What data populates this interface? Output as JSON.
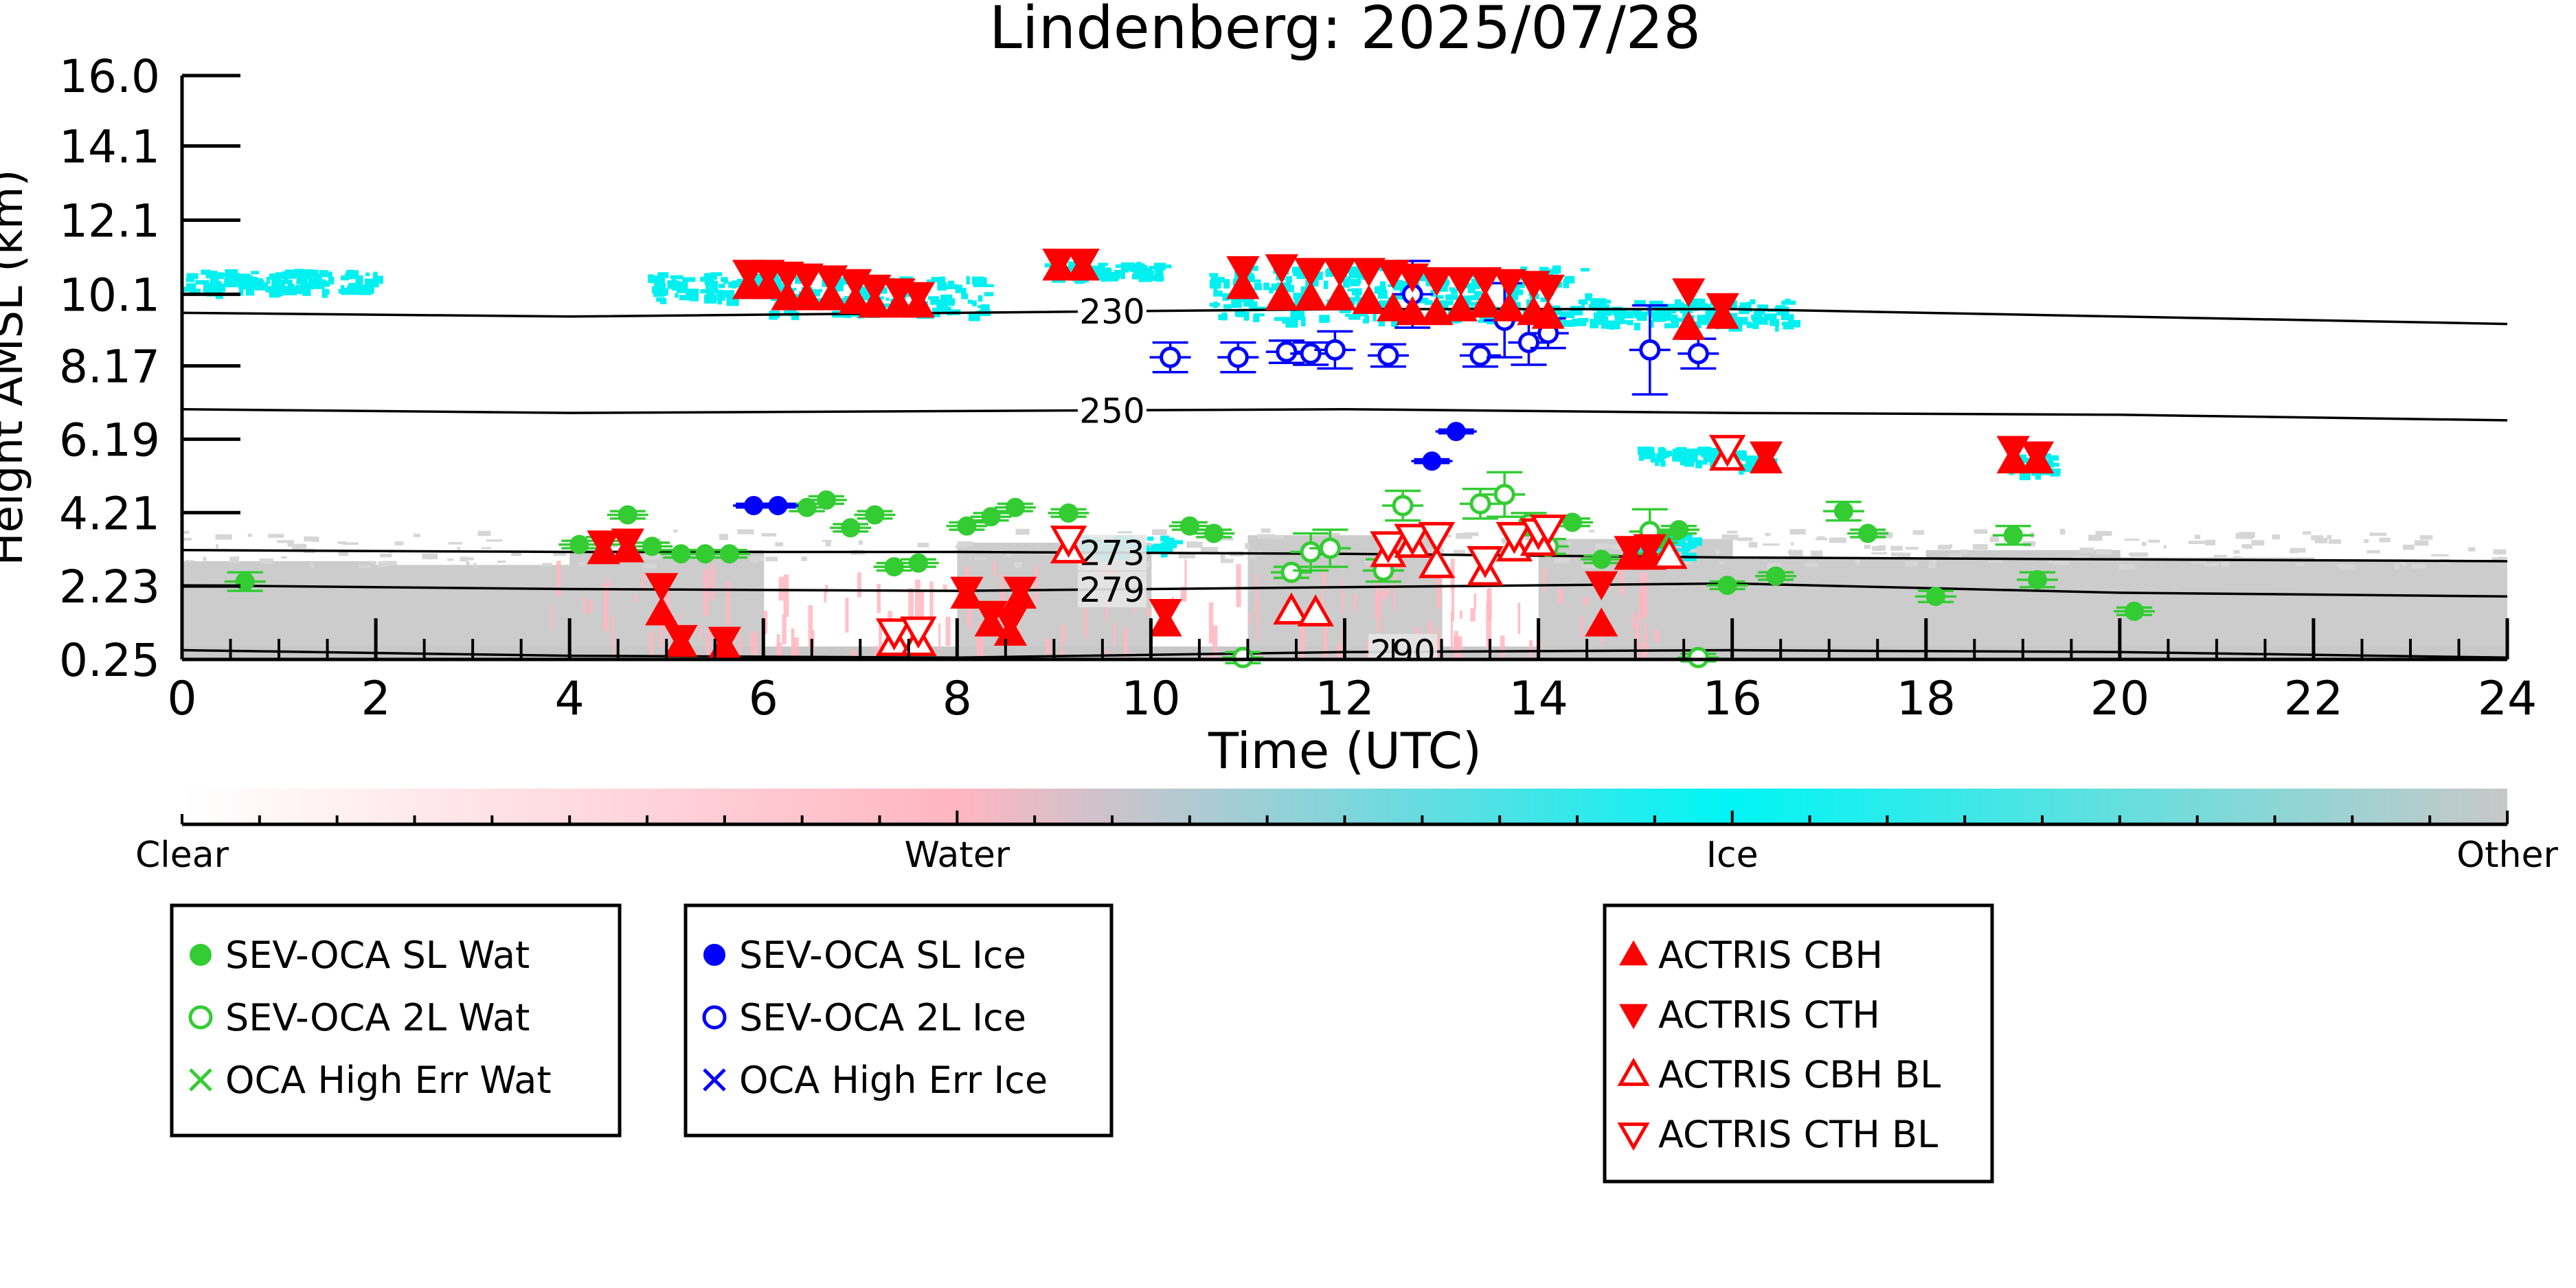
{
  "chart_data": {
    "type": "scatter",
    "title": "Lindenberg: 2025/07/28",
    "xlabel": "Time (UTC)",
    "ylabel": "Height AMSL (km)",
    "xlim": [
      0,
      24
    ],
    "ylim": [
      0.25,
      16.0
    ],
    "x_ticks": [
      "0",
      "2",
      "4",
      "6",
      "8",
      "10",
      "12",
      "14",
      "16",
      "18",
      "20",
      "22",
      "24"
    ],
    "y_ticks": [
      "0.25",
      "2.23",
      "4.21",
      "6.19",
      "8.17",
      "10.1",
      "12.1",
      "14.1",
      "16.0"
    ],
    "y_tick_values": [
      0.25,
      2.23,
      4.21,
      6.19,
      8.17,
      10.1,
      12.1,
      14.1,
      16.0
    ],
    "grid": false,
    "colorbar": {
      "labels": [
        "Clear",
        "Water",
        "Ice",
        "Other"
      ],
      "colors": [
        "#ffffff",
        "#ffb6c1",
        "#00f5f5",
        "#c8c8c8"
      ]
    },
    "contours": [
      {
        "label": "230",
        "label_x": 9.6,
        "x": [
          0,
          4,
          8,
          12,
          16,
          20,
          24
        ],
        "y": [
          9.6,
          9.5,
          9.6,
          9.7,
          9.7,
          9.5,
          9.3
        ]
      },
      {
        "label": "250",
        "label_x": 9.6,
        "x": [
          0,
          4,
          8,
          12,
          16,
          20,
          24
        ],
        "y": [
          7.0,
          6.9,
          6.95,
          7.0,
          6.9,
          6.85,
          6.7
        ]
      },
      {
        "label": "273",
        "label_x": 9.6,
        "x": [
          0,
          4,
          8,
          12,
          16,
          20,
          24
        ],
        "y": [
          3.2,
          3.15,
          3.15,
          3.1,
          3.0,
          2.95,
          2.9
        ]
      },
      {
        "label": "279",
        "label_x": 9.6,
        "x": [
          0,
          4,
          8,
          12,
          16,
          20,
          24
        ],
        "y": [
          2.25,
          2.15,
          2.1,
          2.2,
          2.3,
          2.05,
          1.95
        ]
      },
      {
        "label": "290",
        "label_x": 12.6,
        "x": [
          0,
          4,
          8,
          12,
          16,
          20,
          24
        ],
        "y": [
          0.5,
          0.35,
          0.3,
          0.45,
          0.5,
          0.45,
          0.3
        ]
      }
    ],
    "series": [
      {
        "name": "SEV-OCA SL Wat",
        "color": "#33cc33",
        "marker": "circle-filled",
        "x": [
          0.65,
          4.1,
          4.35,
          4.6,
          4.85,
          5.15,
          5.4,
          5.65,
          6.45,
          6.65,
          6.9,
          7.15,
          7.35,
          7.6,
          8.1,
          8.35,
          8.6,
          9.15,
          10.4,
          10.65,
          14.35,
          14.65,
          15.25,
          15.45,
          15.95,
          16.45,
          17.15,
          17.4,
          18.1,
          18.9,
          19.15,
          20.15
        ],
        "y": [
          2.35,
          3.35,
          3.45,
          4.15,
          3.3,
          3.1,
          3.1,
          3.1,
          4.35,
          4.55,
          3.8,
          4.15,
          2.75,
          2.85,
          3.85,
          4.1,
          4.35,
          4.2,
          3.85,
          3.65,
          3.95,
          2.95,
          3.5,
          3.75,
          2.25,
          2.5,
          4.25,
          3.65,
          1.95,
          3.6,
          2.4,
          1.55
        ],
        "yerr": [
          0.25,
          0.1,
          0.1,
          0.1,
          0.1,
          0.1,
          0.1,
          0.1,
          0.1,
          0.1,
          0.1,
          0.1,
          0.1,
          0.1,
          0.1,
          0.1,
          0.1,
          0.1,
          0.1,
          0.1,
          0.1,
          0.1,
          0.1,
          0.1,
          0.1,
          0.1,
          0.25,
          0.1,
          0.15,
          0.25,
          0.2,
          0.1
        ]
      },
      {
        "name": "SEV-OCA 2L Wat",
        "color": "#33cc33",
        "marker": "circle-open",
        "x": [
          10.95,
          11.45,
          11.65,
          11.85,
          12.4,
          12.6,
          13.4,
          13.65,
          13.9,
          14.1,
          15.15,
          15.65
        ],
        "y": [
          0.3,
          2.6,
          3.15,
          3.25,
          2.65,
          4.4,
          4.45,
          4.7,
          3.9,
          3.3,
          3.7,
          0.3
        ],
        "yerr": [
          0.15,
          0.15,
          0.5,
          0.5,
          0.3,
          0.4,
          0.4,
          0.6,
          0.3,
          0.2,
          0.6,
          0.1
        ]
      },
      {
        "name": "OCA High Err Wat",
        "color": "#33cc33",
        "marker": "x",
        "x": [],
        "y": []
      },
      {
        "name": "SEV-OCA SL Ice",
        "color": "#0000ff",
        "marker": "circle-filled",
        "x": [
          5.9,
          6.15,
          12.9,
          13.15
        ],
        "y": [
          4.4,
          4.4,
          5.6,
          6.4
        ],
        "yerr": [
          0.05,
          0.05,
          0.05,
          0.05
        ]
      },
      {
        "name": "SEV-OCA 2L Ice",
        "color": "#0000ff",
        "marker": "circle-open",
        "x": [
          10.2,
          10.9,
          11.4,
          11.65,
          11.9,
          12.45,
          12.7,
          13.4,
          13.65,
          13.9,
          14.1,
          15.15,
          15.65
        ],
        "y": [
          8.4,
          8.4,
          8.55,
          8.5,
          8.6,
          8.45,
          10.1,
          8.45,
          9.4,
          8.8,
          9.05,
          8.6,
          8.5
        ],
        "yerr": [
          0.4,
          0.4,
          0.3,
          0.3,
          0.5,
          0.3,
          0.9,
          0.3,
          1.0,
          0.6,
          0.4,
          1.2,
          0.4
        ]
      },
      {
        "name": "OCA High Err Ice",
        "color": "#0000ff",
        "marker": "x",
        "x": [],
        "y": []
      },
      {
        "name": "ACTRIS CBH",
        "color": "#ff0000",
        "marker": "triangle-up-filled",
        "x": [
          4.35,
          4.6,
          4.95,
          5.15,
          5.6,
          5.85,
          6.05,
          6.25,
          6.45,
          6.7,
          6.95,
          7.15,
          7.4,
          7.6,
          8.1,
          8.35,
          8.55,
          8.65,
          9.05,
          9.3,
          10.15,
          10.95,
          11.35,
          11.65,
          11.95,
          12.25,
          12.5,
          12.7,
          12.95,
          13.2,
          13.45,
          13.7,
          13.95,
          14.1,
          14.65,
          14.95,
          15.15,
          15.55,
          15.9,
          16.35,
          18.9,
          19.15
        ],
        "y": [
          3.15,
          3.2,
          1.5,
          0.65,
          0.6,
          10.3,
          10.3,
          10.0,
          10.0,
          10.0,
          9.9,
          9.8,
          9.8,
          9.8,
          1.95,
          1.2,
          0.95,
          1.95,
          10.8,
          10.8,
          1.2,
          10.3,
          10.0,
          10.0,
          10.0,
          9.9,
          9.7,
          9.6,
          9.6,
          9.7,
          9.8,
          9.7,
          9.6,
          9.5,
          1.2,
          3.0,
          3.0,
          9.2,
          9.5,
          5.6,
          5.6,
          5.6
        ]
      },
      {
        "name": "ACTRIS CTH",
        "color": "#ff0000",
        "marker": "triangle-down-filled",
        "x": [
          4.35,
          4.6,
          4.95,
          5.15,
          5.6,
          5.85,
          6.05,
          6.25,
          6.45,
          6.7,
          6.95,
          7.15,
          7.4,
          7.6,
          8.1,
          8.35,
          8.55,
          8.65,
          9.05,
          9.3,
          10.15,
          10.95,
          11.35,
          11.65,
          11.95,
          12.25,
          12.5,
          12.7,
          12.95,
          13.2,
          13.45,
          13.7,
          13.95,
          14.1,
          14.65,
          14.95,
          15.15,
          15.55,
          15.9,
          16.35,
          18.9,
          19.15
        ],
        "y": [
          3.4,
          3.45,
          2.25,
          0.85,
          0.8,
          10.7,
          10.7,
          10.65,
          10.6,
          10.55,
          10.45,
          10.3,
          10.2,
          10.1,
          2.15,
          1.5,
          1.3,
          2.15,
          11.0,
          11.0,
          1.55,
          10.8,
          10.85,
          10.75,
          10.75,
          10.75,
          10.7,
          10.6,
          10.5,
          10.5,
          10.5,
          10.45,
          10.4,
          10.3,
          2.3,
          3.25,
          3.3,
          10.2,
          9.8,
          5.8,
          5.95,
          5.8
        ]
      },
      {
        "name": "ACTRIS CBH BL",
        "color": "#ff0000",
        "marker": "triangle-up-open",
        "x": [
          7.35,
          7.6,
          9.15,
          11.45,
          11.7,
          12.45,
          12.7,
          12.95,
          13.45,
          13.75,
          14.0,
          15.35,
          15.95
        ],
        "y": [
          0.7,
          0.7,
          3.2,
          1.55,
          1.5,
          3.1,
          3.35,
          2.8,
          2.6,
          3.25,
          3.4,
          3.05,
          5.7
        ]
      },
      {
        "name": "ACTRIS CTH BL",
        "color": "#ff0000",
        "marker": "triangle-down-open",
        "x": [
          7.35,
          7.6,
          9.15,
          12.45,
          12.7,
          12.95,
          13.45,
          13.75,
          14.0,
          14.1,
          15.95
        ],
        "y": [
          1.0,
          1.05,
          3.5,
          3.35,
          3.55,
          3.6,
          2.95,
          3.6,
          3.7,
          3.8,
          5.95
        ]
      }
    ],
    "legend_groups": [
      [
        "SEV-OCA SL Wat",
        "SEV-OCA 2L Wat",
        "OCA High Err Wat"
      ],
      [
        "SEV-OCA SL Ice",
        "SEV-OCA 2L Ice",
        "OCA High Err Ice"
      ],
      [
        "ACTRIS CBH",
        "ACTRIS CTH",
        "ACTRIS CBH BL",
        "ACTRIS CTH BL"
      ]
    ]
  }
}
